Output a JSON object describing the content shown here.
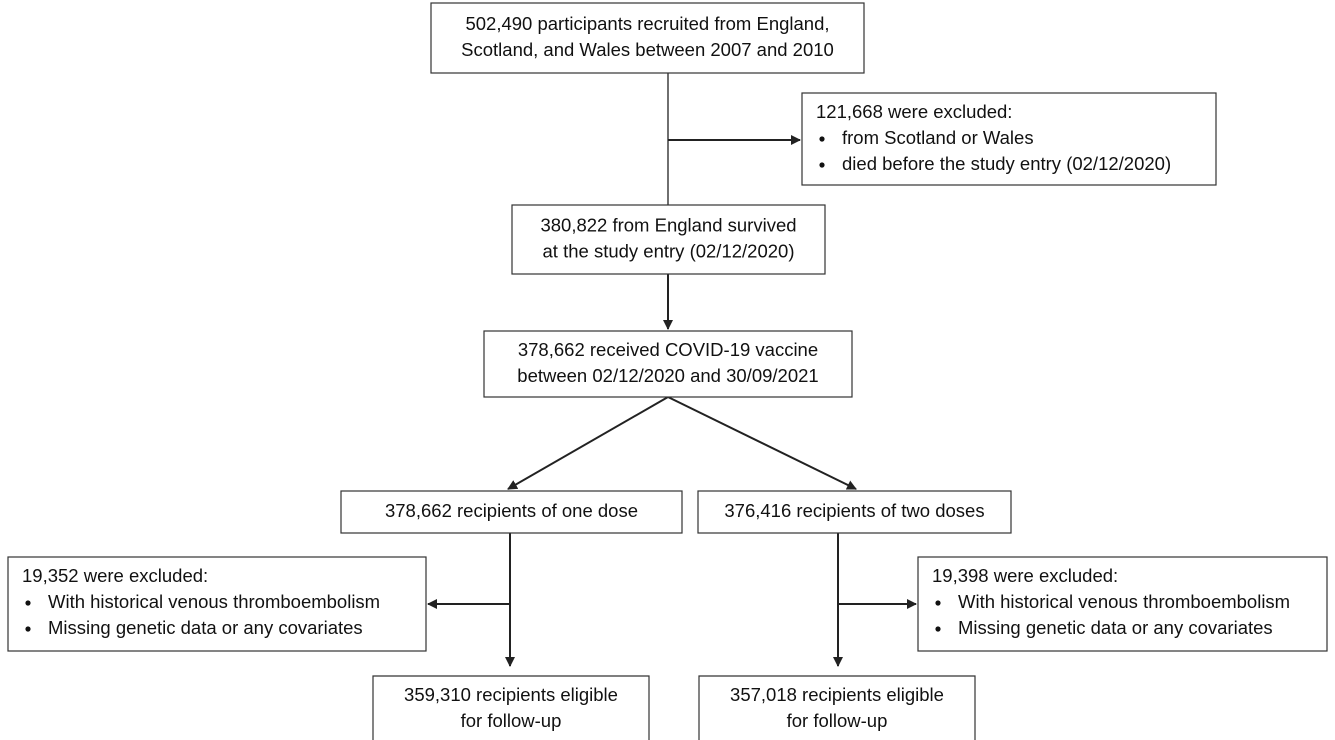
{
  "nodes": [
    {
      "lines": [
        "502,490 participants recruited from England,",
        "Scotland, and Wales between 2007 and 2010"
      ]
    },
    {
      "lines": [
        "380,822 from England survived",
        "at the study entry (02/12/2020)"
      ]
    },
    {
      "lines": [
        "378,662 received COVID-19 vaccine",
        "between 02/12/2020 and 30/09/2021"
      ]
    },
    {
      "lines": [
        "378,662 recipients of one dose"
      ]
    },
    {
      "lines": [
        "376,416 recipients of two doses"
      ]
    },
    {
      "lines": [
        "359,310 recipients eligible",
        "for follow-up"
      ]
    },
    {
      "lines": [
        "357,018 recipients eligible",
        "for follow-up"
      ]
    }
  ],
  "exclusions": [
    {
      "title": "121,668 were excluded:",
      "items": [
        "from Scotland or Wales",
        "died before the study entry (02/12/2020)"
      ]
    },
    {
      "title": "19,352 were excluded:",
      "items": [
        "With historical venous thromboembolism",
        "Missing genetic data or any covariates"
      ]
    },
    {
      "title": "19,398 were excluded:",
      "items": [
        "With historical venous thromboembolism",
        "Missing genetic data or any covariates"
      ]
    }
  ]
}
